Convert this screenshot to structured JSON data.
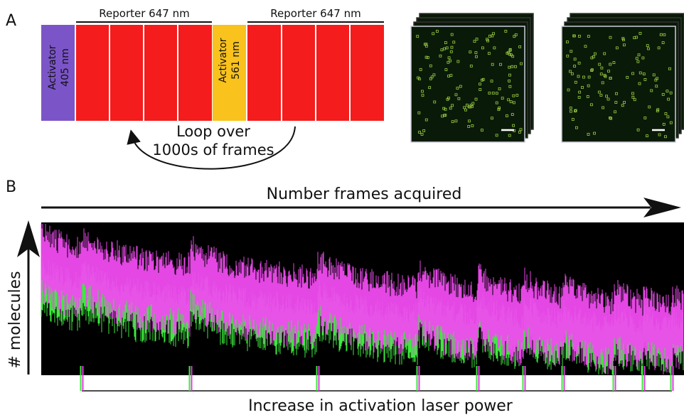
{
  "panel_a": {
    "label": "A",
    "reporter_labels": [
      "Reporter 647 nm",
      "Reporter 647 nm"
    ],
    "activator_405": [
      "Activator",
      "405 nm"
    ],
    "activator_561": [
      "Activator",
      "561 nm"
    ],
    "loop_text": [
      "Loop over",
      "1000s of frames"
    ]
  },
  "panel_b": {
    "label": "B",
    "x_arrow_label": "Number frames acquired",
    "y_arrow_label": "# molecules",
    "bottom_label": "Increase in activation laser power"
  }
}
